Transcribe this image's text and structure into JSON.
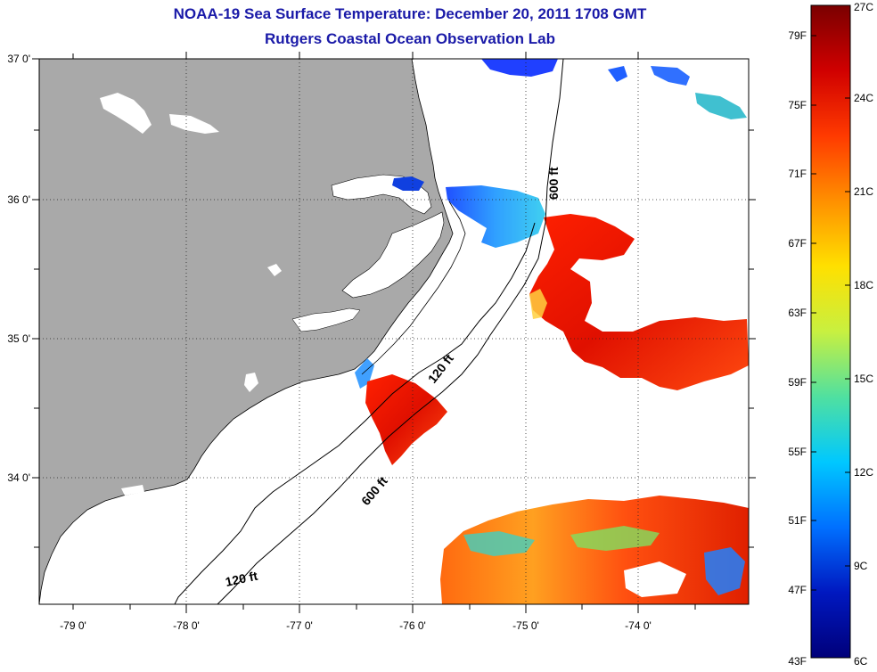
{
  "title": {
    "line1": "NOAA-19 Sea Surface Temperature:  December 20, 2011 1708 GMT",
    "line2": "Rutgers Coastal Ocean Observation Lab"
  },
  "axes": {
    "lon_labels": [
      "-79 0'",
      "-78 0'",
      "-77 0'",
      "-76 0'",
      "-75 0'",
      "-74 0'"
    ],
    "lat_labels": [
      "37 0'",
      "36 0'",
      "35 0'",
      "34 0'"
    ]
  },
  "contours": {
    "label_600_north": "600 ft",
    "label_120_mid": "120 ft",
    "label_600_south": "600 ft",
    "label_120_south": "120 ft"
  },
  "colorbar": {
    "fahrenheit_labels": [
      "79F",
      "75F",
      "71F",
      "67F",
      "63F",
      "59F",
      "55F",
      "51F",
      "47F",
      "43F"
    ],
    "celsius_labels": [
      "27C",
      "24C",
      "21C",
      "18C",
      "15C",
      "12C",
      "9C",
      "6C"
    ],
    "colors": [
      "#7a0000",
      "#d00000",
      "#ff3a00",
      "#ff9000",
      "#ffe000",
      "#c8f040",
      "#50e0a0",
      "#00c8ff",
      "#0070ff",
      "#0018c0",
      "#00007a"
    ]
  },
  "colors": {
    "land": "#a9a9a9",
    "title": "#1a1aa8"
  }
}
